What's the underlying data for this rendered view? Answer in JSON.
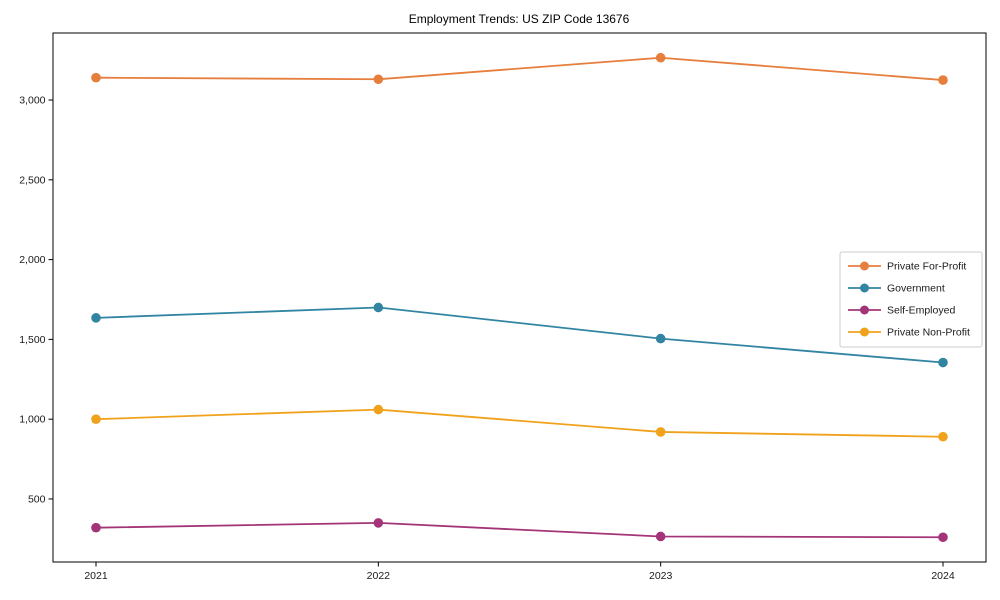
{
  "title": "Employment Trends: US ZIP Code 13676",
  "chart_data": {
    "type": "line",
    "title": "Employment Trends: US ZIP Code 13676",
    "xlabel": "",
    "ylabel": "",
    "x": [
      2021,
      2022,
      2023,
      2024
    ],
    "xtick_labels": [
      "2021",
      "2022",
      "2023",
      "2024"
    ],
    "series": [
      {
        "name": "Private For-Profit",
        "color": "#e67e3d",
        "values": [
          3140,
          3130,
          3265,
          3125
        ]
      },
      {
        "name": "Government",
        "color": "#3185a3",
        "values": [
          1635,
          1700,
          1505,
          1355
        ]
      },
      {
        "name": "Self-Employed",
        "color": "#a43478",
        "values": [
          320,
          350,
          265,
          260
        ]
      },
      {
        "name": "Private Non-Profit",
        "color": "#f1a21c",
        "values": [
          1000,
          1060,
          920,
          890
        ]
      }
    ],
    "ylim": [
      105,
      3420
    ],
    "yticks": [
      500,
      1000,
      1500,
      2000,
      2500,
      3000
    ],
    "ytick_labels": [
      "500",
      "1,000",
      "1,500",
      "2,000",
      "2,500",
      "3,000"
    ],
    "grid": false,
    "marker": "filled-circle",
    "legend": {
      "position": "center-right",
      "entries": [
        "Private For-Profit",
        "Government",
        "Self-Employed",
        "Private Non-Profit"
      ]
    }
  }
}
